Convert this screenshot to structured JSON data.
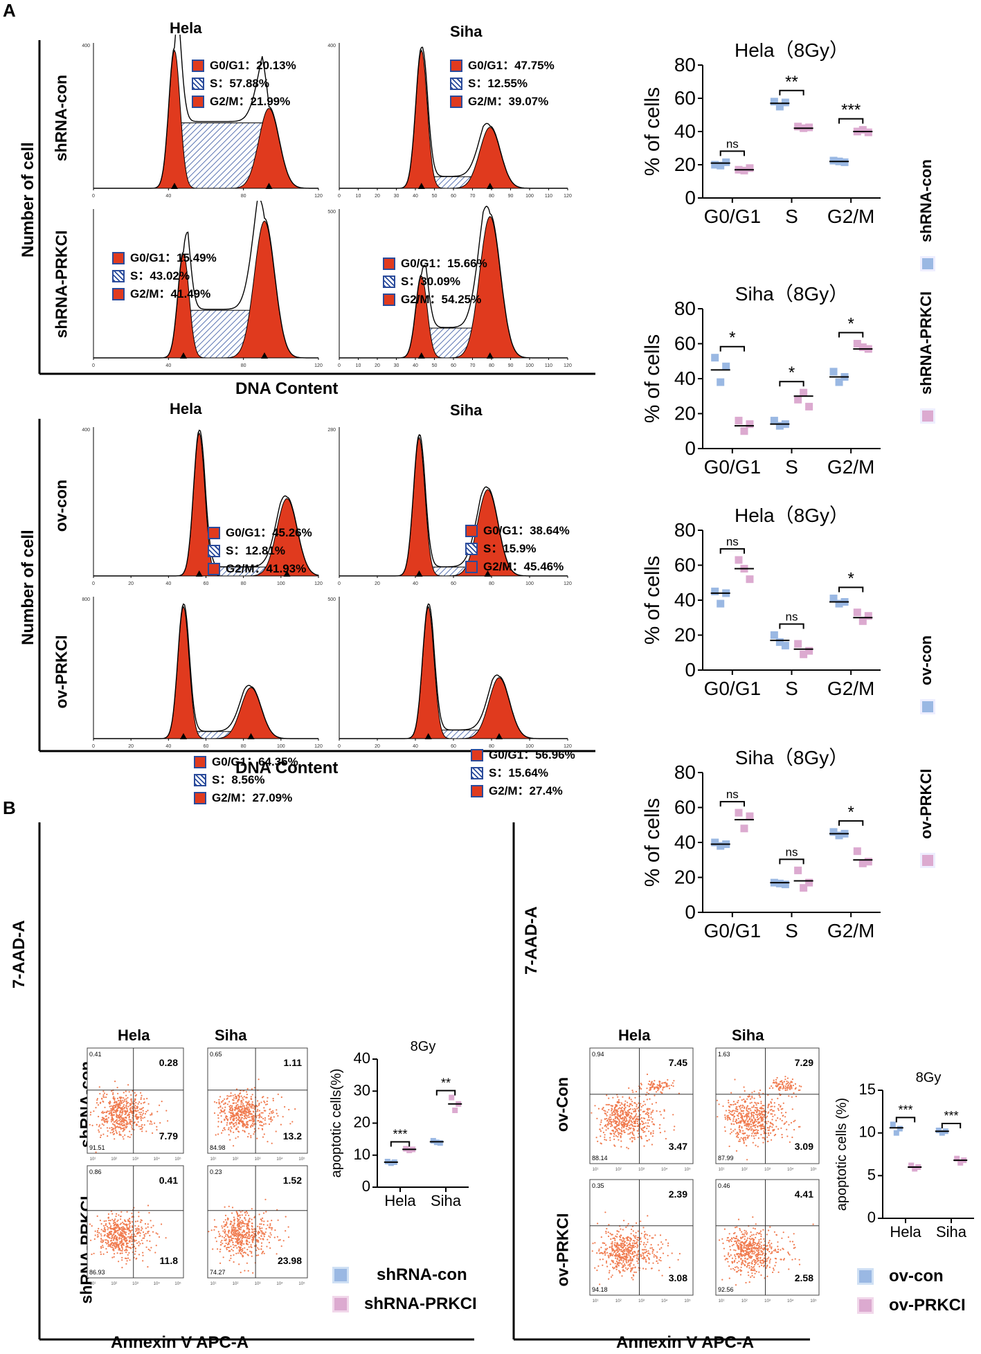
{
  "panel_labels": {
    "a": "A",
    "b": "B"
  },
  "colors": {
    "histogram_fill": "#e03a1e",
    "legend_box_border": "#2a4b9b",
    "s_phase_hatch": "#2a4b9b",
    "control_marker": "#9ab8e3",
    "treatment_marker": "#dcaad0",
    "scatter_dots": "#f07b4f",
    "axis": "#000000"
  },
  "section_a": {
    "y_label": "Number of cell",
    "x_label": "DNA Content",
    "top": {
      "col_titles": [
        "Hela",
        "Siha"
      ],
      "row_labels": [
        "shRNA-con",
        "shRNA-PRKCI"
      ],
      "legends": [
        {
          "g0g1": "G0/G1：20.13%",
          "s": "S：57.88%",
          "g2m": "G2/M：21.99%"
        },
        {
          "g0g1": "G0/G1：47.75%",
          "s": "S：12.55%",
          "g2m": "G2/M：39.07%"
        },
        {
          "g0g1": "G0/G1：15.49%",
          "s": "S：43.02%",
          "g2m": "G2/M：41.49%"
        },
        {
          "g0g1": "G0/G1：15.66%",
          "s": "S：30.09%",
          "g2m": "G2/M：54.25%"
        }
      ]
    },
    "bottom": {
      "col_titles": [
        "Hela",
        "Siha"
      ],
      "row_labels": [
        "ov-con",
        "ov-PRKCI"
      ],
      "legends": [
        {
          "g0g1": "G0/G1：45.26%",
          "s": "S：12.81%",
          "g2m": "G2/M：41.93%"
        },
        {
          "g0g1": "G0/G1：38.64%",
          "s": "S：15.9%",
          "g2m": "G2/M：45.46%"
        },
        {
          "g0g1": "G0/G1：64.35%",
          "s": "S：8.56%",
          "g2m": "G2/M：27.09%"
        },
        {
          "g0g1": "G0/G1：56.96%",
          "s": "S：15.64%",
          "g2m": "G2/M：27.4%"
        }
      ]
    },
    "legend_top": [
      "shRNA-con",
      "shRNA-PRKCI"
    ],
    "legend_bottom": [
      "ov-con",
      "ov-PRKCI"
    ]
  },
  "section_b": {
    "y_label": "7-AAD-A",
    "x_label": "Annexin V APC-A",
    "left": {
      "col_titles": [
        "Hela",
        "Siha"
      ],
      "row_labels": [
        "shRNA-con",
        "shRNA-PRKCI"
      ],
      "quadrants": [
        {
          "ul": "0.41",
          "ur": "0.28",
          "ll": "91.51",
          "lr": "7.79"
        },
        {
          "ul": "0.65",
          "ur": "1.11",
          "ll": "84.98",
          "lr": "13.2"
        },
        {
          "ul": "0.86",
          "ur": "0.41",
          "ll": "86.93",
          "lr": "11.8"
        },
        {
          "ul": "0.23",
          "ur": "1.52",
          "ll": "74.27",
          "lr": "23.98"
        }
      ],
      "legend": [
        "shRNA-con",
        "shRNA-PRKCI"
      ]
    },
    "right": {
      "col_titles": [
        "Hela",
        "Siha"
      ],
      "row_labels": [
        "ov-Con",
        "ov-PRKCI"
      ],
      "quadrants": [
        {
          "ul": "0.94",
          "ur": "7.45",
          "ll": "88.14",
          "lr": "3.47"
        },
        {
          "ul": "1.63",
          "ur": "7.29",
          "ll": "87.99",
          "lr": "3.09"
        },
        {
          "ul": "0.35",
          "ur": "2.39",
          "ll": "94.18",
          "lr": "3.08"
        },
        {
          "ul": "0.46",
          "ur": "4.41",
          "ll": "92.56",
          "lr": "2.58"
        }
      ],
      "legend": [
        "ov-con",
        "ov-PRKCI"
      ]
    }
  },
  "chart_data": [
    {
      "type": "scatter",
      "title": "Hela（8Gy）",
      "ylabel": "% of cells",
      "ylim": [
        0,
        80
      ],
      "yticks": [
        0,
        20,
        40,
        60,
        80
      ],
      "categories": [
        "G0/G1",
        "S",
        "G2/M"
      ],
      "series": [
        {
          "name": "shRNA-con",
          "values": [
            [
              20,
              19.5,
              21.5
            ],
            [
              58,
              55,
              57.5
            ],
            [
              22.5,
              22,
              21.5
            ]
          ],
          "means": [
            21,
            57,
            22
          ]
        },
        {
          "name": "shRNA-PRKCI",
          "values": [
            [
              17,
              16.5,
              18
            ],
            [
              43,
              42,
              42.5
            ],
            [
              40,
              41,
              39.5
            ]
          ],
          "means": [
            17,
            42,
            40
          ]
        }
      ],
      "significance": [
        "ns",
        "**",
        "***"
      ]
    },
    {
      "type": "scatter",
      "title": "Siha（8Gy）",
      "ylabel": "% of cells",
      "ylim": [
        0,
        80
      ],
      "yticks": [
        0,
        20,
        40,
        60,
        80
      ],
      "categories": [
        "G0/G1",
        "S",
        "G2/M"
      ],
      "series": [
        {
          "name": "shRNA-con",
          "values": [
            [
              52,
              38,
              47
            ],
            [
              16,
              13,
              14
            ],
            [
              44,
              38,
              41
            ]
          ],
          "means": [
            45,
            14,
            41
          ]
        },
        {
          "name": "shRNA-PRKCI",
          "values": [
            [
              16,
              10,
              14
            ],
            [
              28,
              32,
              24
            ],
            [
              60,
              58,
              57
            ]
          ],
          "means": [
            13,
            30,
            57
          ]
        }
      ],
      "significance": [
        "*",
        "*",
        "*"
      ]
    },
    {
      "type": "scatter",
      "title": "Hela（8Gy）",
      "ylabel": "% of cells",
      "ylim": [
        0,
        80
      ],
      "yticks": [
        0,
        20,
        40,
        60,
        80
      ],
      "categories": [
        "G0/G1",
        "S",
        "G2/M"
      ],
      "series": [
        {
          "name": "ov-con",
          "values": [
            [
              45,
              38,
              44
            ],
            [
              20,
              16,
              14
            ],
            [
              41,
              38,
              39
            ]
          ],
          "means": [
            44,
            17,
            39
          ]
        },
        {
          "name": "ov-PRKCI",
          "values": [
            [
              63,
              58,
              52
            ],
            [
              15,
              9,
              11
            ],
            [
              33,
              28,
              31
            ]
          ],
          "means": [
            58,
            12,
            30
          ]
        }
      ],
      "significance": [
        "ns",
        "ns",
        "*"
      ]
    },
    {
      "type": "scatter",
      "title": "Siha（8Gy）",
      "ylabel": "% of cells",
      "ylim": [
        0,
        80
      ],
      "yticks": [
        0,
        20,
        40,
        60,
        80
      ],
      "categories": [
        "G0/G1",
        "S",
        "G2/M"
      ],
      "series": [
        {
          "name": "ov-con",
          "values": [
            [
              40,
              38,
              39
            ],
            [
              17,
              16.5,
              16
            ],
            [
              46,
              44,
              45
            ]
          ],
          "means": [
            39,
            17,
            45
          ]
        },
        {
          "name": "ov-PRKCI",
          "values": [
            [
              57,
              48,
              55
            ],
            [
              24,
              14,
              17
            ],
            [
              35,
              28,
              29
            ]
          ],
          "means": [
            53,
            18,
            30
          ]
        }
      ],
      "significance": [
        "ns",
        "ns",
        "*"
      ]
    },
    {
      "type": "scatter",
      "title": "8Gy",
      "ylabel": "apoptotic cells(%)",
      "ylim": [
        0,
        40
      ],
      "yticks": [
        0,
        10,
        20,
        30,
        40
      ],
      "categories": [
        "Hela",
        "Siha"
      ],
      "series": [
        {
          "name": "shRNA-con",
          "values": [
            [
              8,
              7.5,
              7.8
            ],
            [
              14.5,
              14,
              13.8
            ]
          ],
          "means": [
            7.8,
            14.2
          ]
        },
        {
          "name": "shRNA-PRKCI",
          "values": [
            [
              12,
              11.5,
              11.8
            ],
            [
              28,
              24,
              26
            ]
          ],
          "means": [
            11.8,
            26
          ]
        }
      ],
      "significance": [
        "***",
        "**"
      ]
    },
    {
      "type": "scatter",
      "title": "8Gy",
      "ylabel": "apoptotic cells (%)",
      "ylim": [
        0,
        15
      ],
      "yticks": [
        0,
        5,
        10,
        15
      ],
      "categories": [
        "Hela",
        "Siha"
      ],
      "series": [
        {
          "name": "ov-con",
          "values": [
            [
              11,
              10,
              10.5
            ],
            [
              10.3,
              10,
              10.2
            ]
          ],
          "means": [
            10.6,
            10.2
          ]
        },
        {
          "name": "ov-PRKCI",
          "values": [
            [
              6.2,
              5.8,
              6
            ],
            [
              7,
              6.5,
              6.8
            ]
          ],
          "means": [
            6,
            6.8
          ]
        }
      ],
      "significance": [
        "***",
        "***"
      ]
    }
  ]
}
